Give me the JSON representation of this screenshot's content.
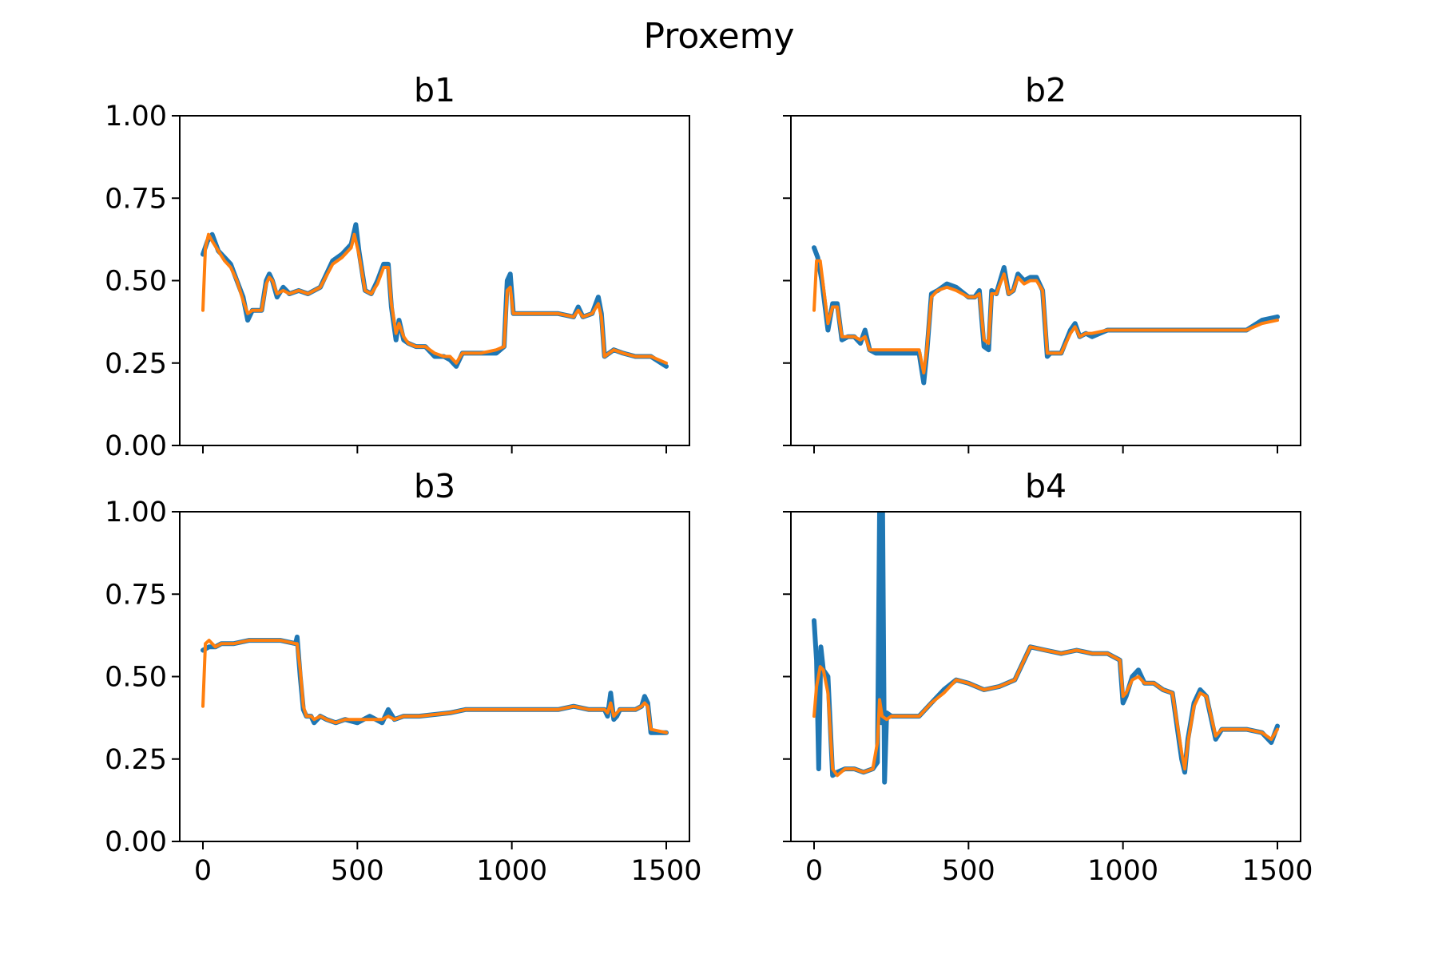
{
  "figure": {
    "suptitle": "Proxemy"
  },
  "chart_data": [
    {
      "type": "line",
      "title": "b1",
      "xlim": [
        -75,
        1575
      ],
      "ylim": [
        0,
        1
      ],
      "xticks": [
        0,
        500,
        1000,
        1500
      ],
      "yticks": [
        0.0,
        0.25,
        0.5,
        0.75,
        1.0
      ],
      "ytick_labels": [
        "0.00",
        "0.25",
        "0.50",
        "0.75",
        "1.00"
      ],
      "xtick_labels": [],
      "show_xtick_labels": false,
      "show_ytick_labels": true,
      "series": [
        {
          "color": "#1f77b4",
          "x": [
            0,
            15,
            30,
            50,
            70,
            90,
            110,
            130,
            145,
            160,
            190,
            205,
            215,
            225,
            240,
            260,
            280,
            310,
            340,
            380,
            420,
            450,
            480,
            495,
            505,
            525,
            545,
            565,
            585,
            600,
            610,
            625,
            635,
            650,
            665,
            690,
            720,
            750,
            780,
            800,
            820,
            840,
            860,
            900,
            950,
            975,
            985,
            995,
            1005,
            1030,
            1060,
            1100,
            1150,
            1200,
            1215,
            1230,
            1260,
            1280,
            1290,
            1300,
            1330,
            1360,
            1400,
            1450,
            1500
          ],
          "y": [
            0.58,
            0.62,
            0.64,
            0.59,
            0.57,
            0.55,
            0.5,
            0.45,
            0.38,
            0.41,
            0.41,
            0.5,
            0.52,
            0.5,
            0.45,
            0.48,
            0.46,
            0.47,
            0.46,
            0.48,
            0.56,
            0.58,
            0.61,
            0.67,
            0.59,
            0.47,
            0.46,
            0.5,
            0.55,
            0.55,
            0.42,
            0.32,
            0.38,
            0.32,
            0.31,
            0.3,
            0.3,
            0.27,
            0.27,
            0.26,
            0.24,
            0.28,
            0.28,
            0.28,
            0.28,
            0.3,
            0.5,
            0.52,
            0.4,
            0.4,
            0.4,
            0.4,
            0.4,
            0.39,
            0.42,
            0.39,
            0.4,
            0.45,
            0.4,
            0.27,
            0.29,
            0.28,
            0.27,
            0.27,
            0.24
          ]
        },
        {
          "color": "#ff7f0e",
          "x": [
            0,
            8,
            18,
            30,
            50,
            70,
            90,
            110,
            130,
            145,
            160,
            190,
            205,
            215,
            225,
            240,
            260,
            280,
            310,
            340,
            380,
            420,
            450,
            480,
            490,
            505,
            525,
            545,
            565,
            585,
            600,
            610,
            625,
            635,
            650,
            665,
            690,
            720,
            750,
            780,
            800,
            820,
            840,
            860,
            900,
            950,
            975,
            985,
            995,
            1005,
            1030,
            1060,
            1100,
            1150,
            1200,
            1215,
            1230,
            1260,
            1280,
            1290,
            1300,
            1330,
            1360,
            1400,
            1450,
            1500
          ],
          "y": [
            0.41,
            0.6,
            0.64,
            0.62,
            0.59,
            0.56,
            0.54,
            0.5,
            0.44,
            0.4,
            0.41,
            0.41,
            0.49,
            0.51,
            0.5,
            0.46,
            0.47,
            0.46,
            0.47,
            0.46,
            0.48,
            0.55,
            0.57,
            0.6,
            0.64,
            0.58,
            0.47,
            0.46,
            0.49,
            0.54,
            0.54,
            0.43,
            0.34,
            0.37,
            0.33,
            0.31,
            0.3,
            0.3,
            0.28,
            0.27,
            0.27,
            0.25,
            0.28,
            0.28,
            0.28,
            0.29,
            0.3,
            0.47,
            0.48,
            0.4,
            0.4,
            0.4,
            0.4,
            0.4,
            0.39,
            0.41,
            0.39,
            0.4,
            0.43,
            0.39,
            0.27,
            0.29,
            0.28,
            0.27,
            0.27,
            0.25
          ]
        }
      ]
    },
    {
      "type": "line",
      "title": "b2",
      "xlim": [
        -75,
        1575
      ],
      "ylim": [
        0,
        1
      ],
      "xticks": [
        0,
        500,
        1000,
        1500
      ],
      "yticks": [
        0.0,
        0.25,
        0.5,
        0.75,
        1.0
      ],
      "ytick_labels": [],
      "xtick_labels": [],
      "show_xtick_labels": false,
      "show_ytick_labels": false,
      "series": [
        {
          "color": "#1f77b4",
          "x": [
            0,
            12,
            25,
            45,
            60,
            75,
            90,
            110,
            130,
            150,
            165,
            180,
            200,
            250,
            300,
            340,
            355,
            365,
            380,
            400,
            430,
            460,
            500,
            520,
            535,
            550,
            565,
            575,
            590,
            615,
            630,
            645,
            660,
            680,
            700,
            720,
            740,
            755,
            765,
            780,
            800,
            830,
            845,
            860,
            880,
            900,
            950,
            1000,
            1100,
            1200,
            1300,
            1400,
            1450,
            1500
          ],
          "y": [
            0.6,
            0.57,
            0.5,
            0.35,
            0.43,
            0.43,
            0.32,
            0.33,
            0.33,
            0.31,
            0.35,
            0.29,
            0.28,
            0.28,
            0.28,
            0.28,
            0.19,
            0.28,
            0.46,
            0.47,
            0.49,
            0.48,
            0.45,
            0.45,
            0.47,
            0.3,
            0.29,
            0.47,
            0.46,
            0.54,
            0.46,
            0.47,
            0.52,
            0.5,
            0.51,
            0.51,
            0.47,
            0.27,
            0.28,
            0.28,
            0.28,
            0.35,
            0.37,
            0.33,
            0.34,
            0.33,
            0.35,
            0.35,
            0.35,
            0.35,
            0.35,
            0.35,
            0.38,
            0.39
          ]
        },
        {
          "color": "#ff7f0e",
          "x": [
            0,
            8,
            20,
            45,
            60,
            75,
            90,
            110,
            130,
            150,
            165,
            180,
            200,
            250,
            300,
            340,
            355,
            365,
            380,
            400,
            430,
            460,
            500,
            520,
            535,
            550,
            565,
            575,
            590,
            615,
            630,
            645,
            660,
            680,
            700,
            720,
            740,
            755,
            765,
            780,
            800,
            830,
            845,
            860,
            880,
            900,
            950,
            1000,
            1100,
            1200,
            1300,
            1400,
            1450,
            1500
          ],
          "y": [
            0.41,
            0.56,
            0.56,
            0.37,
            0.42,
            0.42,
            0.33,
            0.33,
            0.33,
            0.32,
            0.33,
            0.29,
            0.29,
            0.29,
            0.29,
            0.29,
            0.22,
            0.29,
            0.45,
            0.47,
            0.48,
            0.47,
            0.45,
            0.45,
            0.46,
            0.32,
            0.31,
            0.46,
            0.46,
            0.52,
            0.46,
            0.47,
            0.51,
            0.49,
            0.5,
            0.5,
            0.47,
            0.28,
            0.28,
            0.28,
            0.28,
            0.34,
            0.36,
            0.33,
            0.34,
            0.34,
            0.35,
            0.35,
            0.35,
            0.35,
            0.35,
            0.35,
            0.37,
            0.38
          ]
        }
      ]
    },
    {
      "type": "line",
      "title": "b3",
      "xlim": [
        -75,
        1575
      ],
      "ylim": [
        0,
        1
      ],
      "xticks": [
        0,
        500,
        1000,
        1500
      ],
      "yticks": [
        0.0,
        0.25,
        0.5,
        0.75,
        1.0
      ],
      "ytick_labels": [
        "0.00",
        "0.25",
        "0.50",
        "0.75",
        "1.00"
      ],
      "xtick_labels": [
        "0",
        "500",
        "1000",
        "1500"
      ],
      "show_xtick_labels": true,
      "show_ytick_labels": true,
      "series": [
        {
          "color": "#1f77b4",
          "x": [
            0,
            20,
            40,
            60,
            100,
            150,
            200,
            250,
            300,
            305,
            315,
            325,
            335,
            350,
            360,
            380,
            400,
            430,
            460,
            500,
            540,
            580,
            600,
            620,
            650,
            700,
            800,
            850,
            900,
            950,
            1000,
            1100,
            1150,
            1200,
            1250,
            1300,
            1310,
            1320,
            1330,
            1340,
            1350,
            1370,
            1400,
            1420,
            1430,
            1440,
            1450,
            1500
          ],
          "y": [
            0.58,
            0.59,
            0.59,
            0.6,
            0.6,
            0.61,
            0.61,
            0.61,
            0.6,
            0.62,
            0.5,
            0.4,
            0.38,
            0.38,
            0.36,
            0.38,
            0.37,
            0.36,
            0.37,
            0.36,
            0.38,
            0.36,
            0.4,
            0.37,
            0.38,
            0.38,
            0.39,
            0.4,
            0.4,
            0.4,
            0.4,
            0.4,
            0.4,
            0.41,
            0.4,
            0.4,
            0.38,
            0.45,
            0.37,
            0.38,
            0.4,
            0.4,
            0.4,
            0.41,
            0.44,
            0.42,
            0.33,
            0.33
          ]
        },
        {
          "color": "#ff7f0e",
          "x": [
            0,
            8,
            20,
            40,
            60,
            100,
            150,
            200,
            250,
            300,
            305,
            315,
            325,
            335,
            350,
            360,
            380,
            400,
            430,
            460,
            500,
            540,
            580,
            600,
            620,
            650,
            700,
            800,
            850,
            900,
            950,
            1000,
            1100,
            1150,
            1200,
            1250,
            1300,
            1310,
            1320,
            1330,
            1340,
            1350,
            1370,
            1400,
            1420,
            1430,
            1440,
            1450,
            1500
          ],
          "y": [
            0.41,
            0.6,
            0.61,
            0.59,
            0.6,
            0.6,
            0.61,
            0.61,
            0.61,
            0.6,
            0.6,
            0.52,
            0.41,
            0.38,
            0.38,
            0.37,
            0.38,
            0.37,
            0.36,
            0.37,
            0.37,
            0.37,
            0.37,
            0.38,
            0.37,
            0.38,
            0.38,
            0.39,
            0.4,
            0.4,
            0.4,
            0.4,
            0.4,
            0.4,
            0.41,
            0.4,
            0.4,
            0.39,
            0.42,
            0.38,
            0.39,
            0.4,
            0.4,
            0.4,
            0.41,
            0.42,
            0.41,
            0.34,
            0.33
          ]
        }
      ]
    },
    {
      "type": "line",
      "title": "b4",
      "xlim": [
        -75,
        1575
      ],
      "ylim": [
        0,
        1
      ],
      "xticks": [
        0,
        500,
        1000,
        1500
      ],
      "yticks": [
        0.0,
        0.25,
        0.5,
        0.75,
        1.0
      ],
      "ytick_labels": [],
      "xtick_labels": [
        "0",
        "500",
        "1000",
        "1500"
      ],
      "show_xtick_labels": true,
      "show_ytick_labels": false,
      "series": [
        {
          "color": "#1f77b4",
          "x": [
            0,
            8,
            15,
            22,
            30,
            45,
            60,
            75,
            100,
            130,
            160,
            190,
            205,
            212,
            218,
            222,
            228,
            235,
            250,
            280,
            310,
            340,
            380,
            420,
            460,
            500,
            550,
            600,
            650,
            700,
            750,
            800,
            850,
            900,
            950,
            990,
            1000,
            1010,
            1030,
            1050,
            1070,
            1100,
            1130,
            1160,
            1190,
            1200,
            1210,
            1230,
            1250,
            1270,
            1300,
            1320,
            1350,
            1400,
            1450,
            1480,
            1500
          ],
          "y": [
            0.67,
            0.55,
            0.22,
            0.59,
            0.52,
            0.5,
            0.2,
            0.21,
            0.22,
            0.22,
            0.21,
            0.22,
            0.24,
            1.0,
            0.36,
            1.0,
            0.18,
            0.39,
            0.38,
            0.38,
            0.38,
            0.38,
            0.42,
            0.46,
            0.49,
            0.48,
            0.46,
            0.47,
            0.49,
            0.59,
            0.58,
            0.57,
            0.58,
            0.57,
            0.57,
            0.55,
            0.42,
            0.44,
            0.5,
            0.52,
            0.48,
            0.48,
            0.46,
            0.45,
            0.25,
            0.21,
            0.31,
            0.42,
            0.46,
            0.44,
            0.31,
            0.34,
            0.34,
            0.34,
            0.33,
            0.3,
            0.35
          ]
        },
        {
          "color": "#ff7f0e",
          "x": [
            0,
            8,
            20,
            30,
            45,
            60,
            75,
            100,
            130,
            160,
            190,
            205,
            212,
            220,
            235,
            250,
            280,
            310,
            340,
            380,
            420,
            460,
            500,
            550,
            600,
            650,
            700,
            750,
            800,
            850,
            900,
            950,
            990,
            1000,
            1010,
            1030,
            1050,
            1070,
            1100,
            1130,
            1160,
            1190,
            1200,
            1210,
            1230,
            1250,
            1270,
            1300,
            1320,
            1350,
            1400,
            1450,
            1480,
            1500
          ],
          "y": [
            0.38,
            0.47,
            0.53,
            0.52,
            0.45,
            0.22,
            0.2,
            0.22,
            0.22,
            0.21,
            0.22,
            0.3,
            0.43,
            0.38,
            0.37,
            0.38,
            0.38,
            0.38,
            0.38,
            0.42,
            0.45,
            0.49,
            0.48,
            0.46,
            0.47,
            0.49,
            0.59,
            0.58,
            0.57,
            0.58,
            0.57,
            0.57,
            0.55,
            0.44,
            0.45,
            0.49,
            0.5,
            0.48,
            0.48,
            0.46,
            0.45,
            0.27,
            0.22,
            0.3,
            0.41,
            0.45,
            0.44,
            0.32,
            0.34,
            0.34,
            0.34,
            0.33,
            0.31,
            0.34
          ]
        }
      ]
    }
  ]
}
